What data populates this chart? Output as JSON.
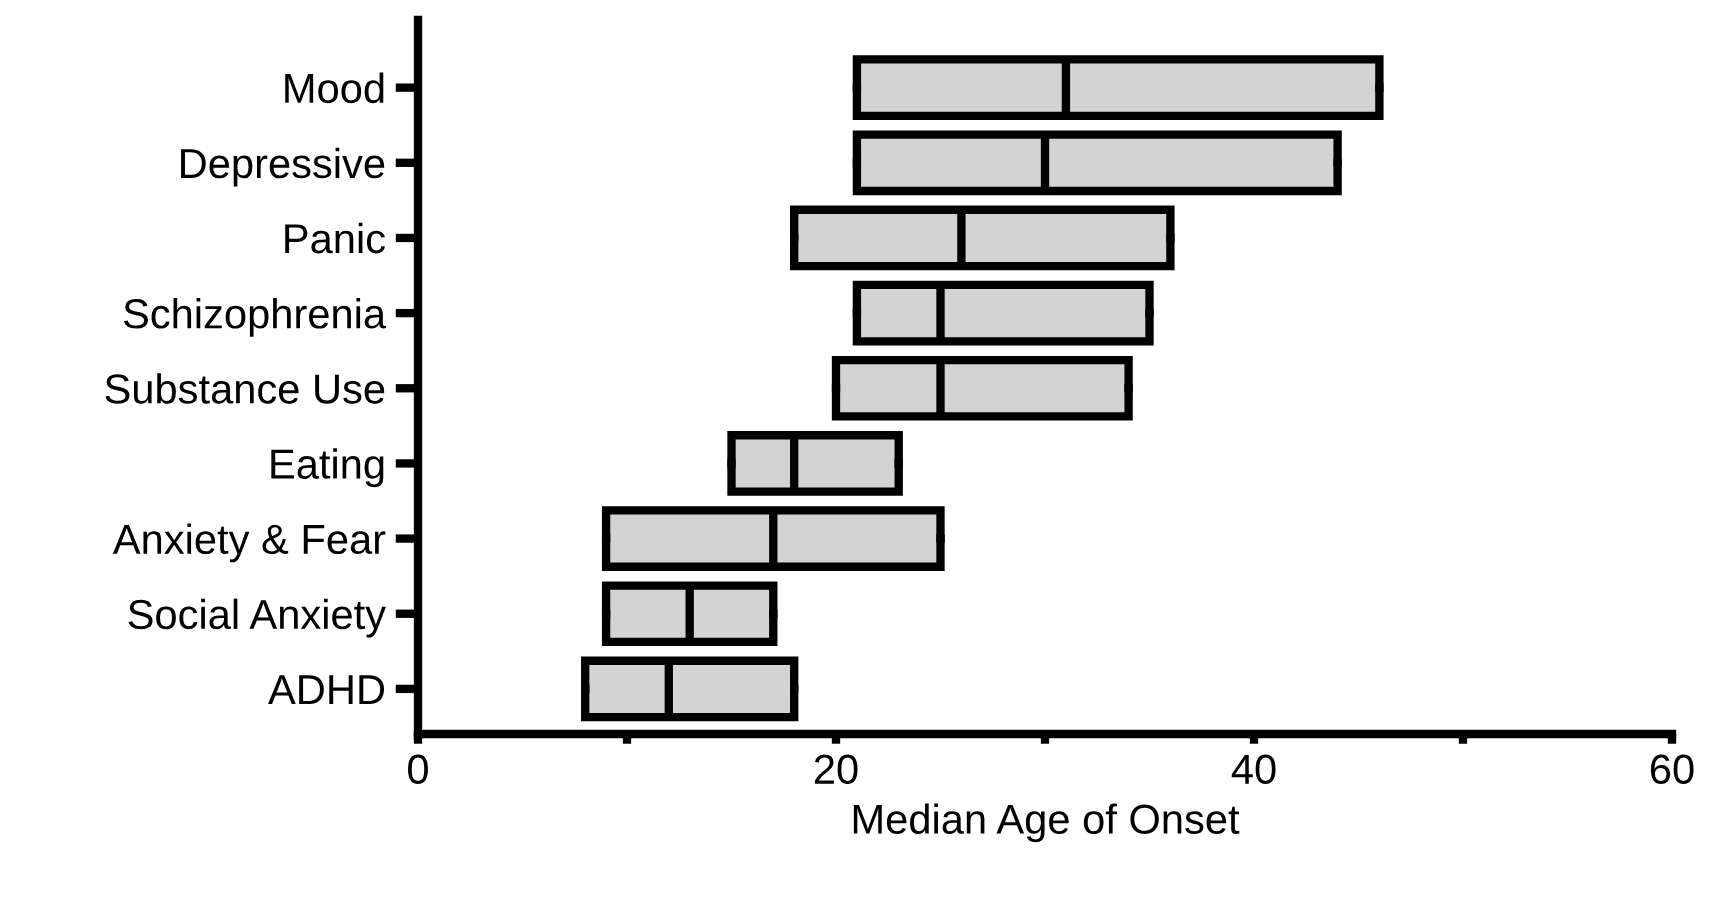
{
  "chart_data": {
    "type": "box",
    "orientation": "horizontal",
    "xlabel": "Median Age of Onset",
    "categories": [
      "Mood",
      "Depressive",
      "Panic",
      "Schizophrenia",
      "Substance Use",
      "Eating",
      "Anxiety & Fear",
      "Social Anxiety",
      "ADHD"
    ],
    "color": "#d3d3d3",
    "boxes": [
      {
        "low": 21,
        "q1": 21,
        "median": 31,
        "q3": 46,
        "high": 46
      },
      {
        "low": 21,
        "q1": 21,
        "median": 30,
        "q3": 44,
        "high": 44
      },
      {
        "low": 18,
        "q1": 18,
        "median": 26,
        "q3": 36,
        "high": 36
      },
      {
        "low": 21,
        "q1": 21,
        "median": 25,
        "q3": 35,
        "high": 35
      },
      {
        "low": 20,
        "q1": 20,
        "median": 25,
        "q3": 34,
        "high": 34
      },
      {
        "low": 15,
        "q1": 15,
        "median": 18,
        "q3": 23,
        "high": 23
      },
      {
        "low": 9,
        "q1": 9,
        "median": 17,
        "q3": 25,
        "high": 25
      },
      {
        "low": 9,
        "q1": 9,
        "median": 13,
        "q3": 17,
        "high": 17
      },
      {
        "low": 8,
        "q1": 8,
        "median": 12,
        "q3": 18,
        "high": 18
      }
    ],
    "xlim": [
      0,
      60
    ],
    "xticks": [
      0,
      {
        "value": 10,
        "label": null
      },
      20,
      {
        "value": 30,
        "label": null
      },
      40,
      {
        "value": 50,
        "label": null
      },
      60
    ],
    "grid": false,
    "legend": false
  }
}
